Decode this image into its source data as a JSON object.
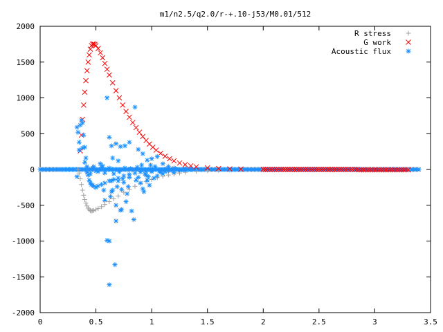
{
  "chart_data": {
    "type": "scatter",
    "title": "m1/n2.5/q2.0/r-+.10-j53/M0.01/512",
    "xlabel": "",
    "ylabel": "",
    "xlim": [
      0,
      3.5
    ],
    "ylim": [
      -2000,
      2000
    ],
    "x_ticks": [
      "0",
      "0.5",
      "1",
      "1.5",
      "2",
      "2.5",
      "3",
      "3.5"
    ],
    "y_ticks": [
      "2000",
      "1500",
      "1000",
      "500",
      "0",
      "-500",
      "-1000",
      "-1500",
      "-2000"
    ],
    "grid": false,
    "legend_position": "top-right",
    "series": [
      {
        "name": "R stress",
        "color": "#a0a0a0",
        "marker": "plus",
        "points": [
          [
            0.34,
            0
          ],
          [
            0.35,
            -50
          ],
          [
            0.36,
            -130
          ],
          [
            0.37,
            -210
          ],
          [
            0.38,
            -290
          ],
          [
            0.39,
            -360
          ],
          [
            0.4,
            -420
          ],
          [
            0.41,
            -470
          ],
          [
            0.42,
            -510
          ],
          [
            0.43,
            -540
          ],
          [
            0.44,
            -560
          ],
          [
            0.45,
            -575
          ],
          [
            0.46,
            -580
          ],
          [
            0.47,
            -578
          ],
          [
            0.48,
            -572
          ],
          [
            0.5,
            -560
          ],
          [
            0.52,
            -545
          ],
          [
            0.55,
            -520
          ],
          [
            0.58,
            -490
          ],
          [
            0.62,
            -450
          ],
          [
            0.66,
            -410
          ],
          [
            0.7,
            -370
          ],
          [
            0.75,
            -320
          ],
          [
            0.8,
            -275
          ],
          [
            0.85,
            -235
          ],
          [
            0.9,
            -200
          ],
          [
            0.95,
            -170
          ],
          [
            1.0,
            -140
          ],
          [
            1.05,
            -115
          ],
          [
            1.1,
            -95
          ],
          [
            1.15,
            -78
          ],
          [
            1.2,
            -62
          ],
          [
            1.25,
            -50
          ],
          [
            1.3,
            -40
          ],
          [
            1.4,
            -26
          ],
          [
            1.5,
            -17
          ],
          [
            1.6,
            -11
          ],
          [
            1.7,
            -7
          ],
          [
            1.8,
            -5
          ],
          [
            2.0,
            -2
          ],
          [
            2.2,
            -1
          ],
          [
            2.5,
            0
          ],
          [
            2.8,
            0
          ],
          [
            3.1,
            0
          ],
          [
            3.3,
            0
          ]
        ]
      },
      {
        "name": "G work",
        "color": "#ff0000",
        "marker": "cross",
        "points": [
          [
            0.36,
            260
          ],
          [
            0.37,
            480
          ],
          [
            0.38,
            700
          ],
          [
            0.39,
            900
          ],
          [
            0.4,
            1080
          ],
          [
            0.41,
            1240
          ],
          [
            0.42,
            1380
          ],
          [
            0.43,
            1500
          ],
          [
            0.44,
            1600
          ],
          [
            0.45,
            1680
          ],
          [
            0.46,
            1730
          ],
          [
            0.47,
            1750
          ],
          [
            0.48,
            1752
          ],
          [
            0.49,
            1745
          ],
          [
            0.5,
            1730
          ],
          [
            0.52,
            1690
          ],
          [
            0.54,
            1630
          ],
          [
            0.56,
            1560
          ],
          [
            0.58,
            1480
          ],
          [
            0.6,
            1400
          ],
          [
            0.62,
            1320
          ],
          [
            0.65,
            1210
          ],
          [
            0.68,
            1100
          ],
          [
            0.71,
            1000
          ],
          [
            0.74,
            900
          ],
          [
            0.77,
            810
          ],
          [
            0.8,
            730
          ],
          [
            0.83,
            655
          ],
          [
            0.86,
            585
          ],
          [
            0.89,
            520
          ],
          [
            0.92,
            460
          ],
          [
            0.95,
            405
          ],
          [
            0.98,
            355
          ],
          [
            1.01,
            310
          ],
          [
            1.04,
            270
          ],
          [
            1.08,
            225
          ],
          [
            1.12,
            185
          ],
          [
            1.16,
            150
          ],
          [
            1.2,
            120
          ],
          [
            1.25,
            90
          ],
          [
            1.3,
            68
          ],
          [
            1.35,
            50
          ],
          [
            1.4,
            37
          ],
          [
            1.5,
            22
          ],
          [
            1.6,
            13
          ],
          [
            1.7,
            8
          ],
          [
            1.8,
            5
          ],
          [
            2.0,
            2
          ],
          [
            2.3,
            0
          ],
          [
            2.6,
            0
          ],
          [
            2.9,
            -5
          ],
          [
            3.1,
            -5
          ],
          [
            3.3,
            -5
          ]
        ]
      },
      {
        "name": "Acoustic flux",
        "color": "#1e90ff",
        "marker": "star",
        "baseline": {
          "x_start": 0.0,
          "x_end": 3.4,
          "y": 0
        },
        "points": [
          [
            0.33,
            590
          ],
          [
            0.34,
            520
          ],
          [
            0.35,
            380
          ],
          [
            0.36,
            620
          ],
          [
            0.37,
            690
          ],
          [
            0.38,
            650
          ],
          [
            0.39,
            480
          ],
          [
            0.4,
            310
          ],
          [
            0.41,
            160
          ],
          [
            0.42,
            40
          ],
          [
            0.43,
            -80
          ],
          [
            0.44,
            -150
          ],
          [
            0.45,
            -190
          ],
          [
            0.46,
            -210
          ],
          [
            0.47,
            -220
          ],
          [
            0.48,
            -235
          ],
          [
            0.5,
            -250
          ],
          [
            0.52,
            -230
          ],
          [
            0.55,
            -210
          ],
          [
            0.58,
            -190
          ],
          [
            0.62,
            -160
          ],
          [
            0.66,
            -140
          ],
          [
            0.7,
            -120
          ],
          [
            0.75,
            -90
          ],
          [
            0.8,
            -70
          ],
          [
            0.85,
            -50
          ],
          [
            0.9,
            -35
          ],
          [
            0.95,
            -25
          ],
          [
            1.0,
            -15
          ],
          [
            1.1,
            -8
          ],
          [
            1.2,
            -4
          ],
          [
            1.3,
            -2
          ],
          [
            0.33,
            -100
          ],
          [
            0.35,
            270
          ],
          [
            0.38,
            300
          ],
          [
            0.4,
            100
          ],
          [
            0.42,
            -40
          ],
          [
            0.47,
            20
          ],
          [
            0.52,
            -30
          ],
          [
            0.55,
            30
          ],
          [
            0.57,
            -290
          ],
          [
            0.58,
            -430
          ],
          [
            0.6,
            -990
          ],
          [
            0.62,
            -1610
          ],
          [
            0.62,
            -1000
          ],
          [
            0.63,
            -380
          ],
          [
            0.64,
            -310
          ],
          [
            0.64,
            -160
          ],
          [
            0.65,
            -290
          ],
          [
            0.67,
            -1330
          ],
          [
            0.68,
            -720
          ],
          [
            0.68,
            -500
          ],
          [
            0.69,
            -240
          ],
          [
            0.7,
            -160
          ],
          [
            0.72,
            -570
          ],
          [
            0.73,
            -560
          ],
          [
            0.73,
            -280
          ],
          [
            0.74,
            -130
          ],
          [
            0.75,
            -180
          ],
          [
            0.77,
            -450
          ],
          [
            0.78,
            -340
          ],
          [
            0.79,
            -240
          ],
          [
            0.8,
            -110
          ],
          [
            0.82,
            -580
          ],
          [
            0.84,
            -700
          ],
          [
            0.85,
            870
          ],
          [
            0.86,
            -150
          ],
          [
            0.88,
            -110
          ],
          [
            0.9,
            -190
          ],
          [
            0.92,
            -270
          ],
          [
            0.93,
            -310
          ],
          [
            0.94,
            -60
          ],
          [
            0.96,
            -150
          ],
          [
            0.97,
            -100
          ],
          [
            0.98,
            -220
          ],
          [
            1.0,
            -30
          ],
          [
            1.02,
            -120
          ],
          [
            1.05,
            -90
          ],
          [
            1.08,
            -40
          ],
          [
            1.1,
            -60
          ],
          [
            1.12,
            -30
          ],
          [
            1.15,
            -20
          ],
          [
            1.2,
            -45
          ],
          [
            1.25,
            -15
          ],
          [
            0.6,
            1000
          ],
          [
            0.62,
            450
          ],
          [
            0.64,
            330
          ],
          [
            0.68,
            360
          ],
          [
            0.72,
            320
          ],
          [
            0.76,
            330
          ],
          [
            0.8,
            380
          ],
          [
            0.88,
            280
          ],
          [
            0.92,
            220
          ],
          [
            0.96,
            130
          ],
          [
            1.0,
            150
          ],
          [
            1.05,
            180
          ],
          [
            1.1,
            80
          ],
          [
            1.15,
            40
          ],
          [
            1.2,
            20
          ],
          [
            1.3,
            10
          ],
          [
            0.65,
            160
          ],
          [
            0.7,
            120
          ],
          [
            0.62,
            20
          ],
          [
            0.56,
            50
          ],
          [
            0.5,
            -20
          ],
          [
            0.45,
            -60
          ],
          [
            0.48,
            40
          ],
          [
            0.54,
            80
          ],
          [
            0.58,
            -50
          ],
          [
            0.66,
            -60
          ],
          [
            0.71,
            -30
          ],
          [
            0.76,
            20
          ],
          [
            0.81,
            10
          ],
          [
            0.87,
            30
          ],
          [
            0.91,
            60
          ],
          [
            0.95,
            -80
          ],
          [
            0.99,
            60
          ],
          [
            1.03,
            40
          ],
          [
            1.07,
            -20
          ],
          [
            1.13,
            10
          ],
          [
            1.18,
            -10
          ],
          [
            1.22,
            5
          ],
          [
            1.28,
            -5
          ],
          [
            1.35,
            3
          ],
          [
            1.45,
            -2
          ]
        ]
      }
    ]
  }
}
